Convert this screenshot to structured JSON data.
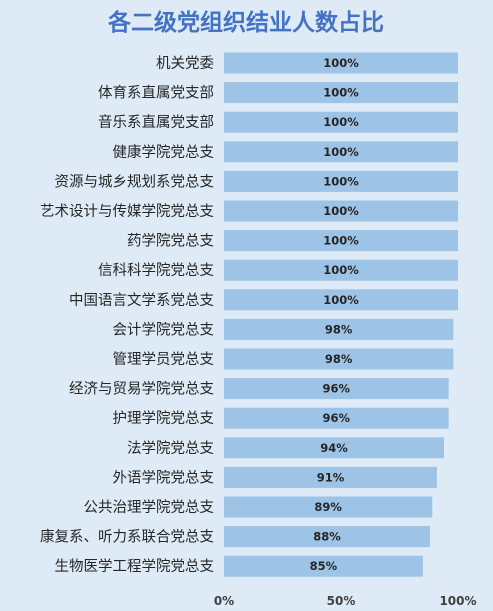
{
  "chart_data": {
    "type": "bar",
    "orientation": "horizontal",
    "title": "各二级党组织结业人数占比",
    "categories": [
      "机关党委",
      "体育系直属党支部",
      "音乐系直属党支部",
      "健康学院党总支",
      "资源与城乡规划系党总支",
      "艺术设计与传媒学院党总支",
      "药学院党总支",
      "信科科学院党总支",
      "中国语言文学系党总支",
      "会计学院党总支",
      "管理学员党总支",
      "经济与贸易学院党总支",
      "护理学院党总支",
      "法学院党总支",
      "外语学院党总支",
      "公共治理学院党总支",
      "康复系、听力系联合党总支",
      "生物医学工程学院党总支"
    ],
    "values": [
      100,
      100,
      100,
      100,
      100,
      100,
      100,
      100,
      100,
      98,
      98,
      96,
      96,
      94,
      91,
      89,
      88,
      85
    ],
    "data_labels": [
      "100%",
      "100%",
      "100%",
      "100%",
      "100%",
      "100%",
      "100%",
      "100%",
      "100%",
      "98%",
      "98%",
      "96%",
      "96%",
      "94%",
      "91%",
      "89%",
      "88%",
      "85%"
    ],
    "xlim": [
      0,
      100
    ],
    "x_ticks": [
      "0%",
      "50%",
      "100%"
    ],
    "bar_color": "#9dc3e6",
    "background_color": "#deebf7",
    "title_color": "#4472c4",
    "grid": false
  }
}
